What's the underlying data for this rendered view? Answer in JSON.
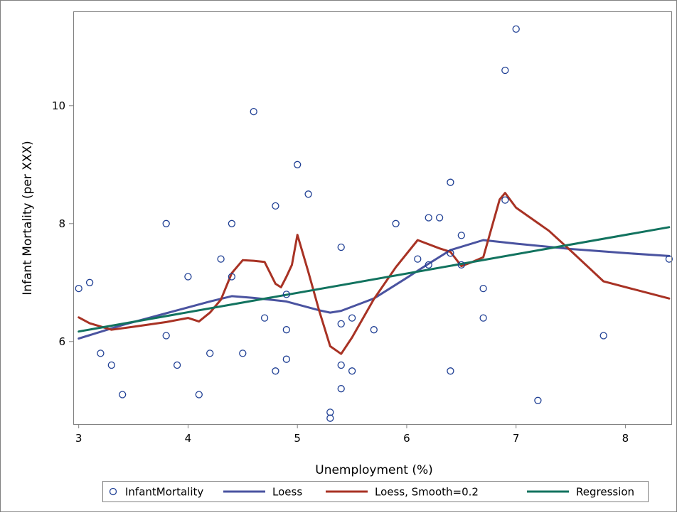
{
  "chart_data": {
    "type": "scatter",
    "title": "",
    "xlabel": "Unemployment (%)",
    "ylabel": "Infant Mortality (per XXX)",
    "xlim": [
      2.95,
      8.42
    ],
    "ylim": [
      4.6,
      11.6
    ],
    "x_ticks": [
      "3",
      "4",
      "5",
      "6",
      "7",
      "8"
    ],
    "y_ticks": [
      "6",
      "8",
      "10"
    ],
    "grid": false,
    "legend": {
      "position": "bottom",
      "entries": [
        "InfantMortality",
        "Loess",
        "Loess, Smooth=0.2",
        "Regression"
      ]
    },
    "colors": {
      "points": "#1f3f94",
      "loess": "#4a53a0",
      "loess_smooth": "#a83224",
      "regression": "#12735f",
      "frame": "#808080"
    },
    "series": [
      {
        "name": "InfantMortality",
        "type": "scatter",
        "points": [
          [
            3.0,
            6.9
          ],
          [
            3.1,
            7.0
          ],
          [
            3.2,
            5.8
          ],
          [
            3.3,
            5.6
          ],
          [
            3.4,
            5.1
          ],
          [
            3.8,
            8.0
          ],
          [
            3.8,
            6.1
          ],
          [
            3.9,
            5.6
          ],
          [
            4.0,
            7.1
          ],
          [
            4.1,
            5.1
          ],
          [
            4.2,
            5.8
          ],
          [
            4.3,
            7.4
          ],
          [
            4.4,
            8.0
          ],
          [
            4.4,
            7.1
          ],
          [
            4.5,
            5.8
          ],
          [
            4.6,
            9.9
          ],
          [
            4.7,
            6.4
          ],
          [
            4.8,
            8.3
          ],
          [
            4.8,
            5.5
          ],
          [
            4.9,
            6.8
          ],
          [
            4.9,
            6.2
          ],
          [
            4.9,
            5.7
          ],
          [
            5.0,
            9.0
          ],
          [
            5.1,
            8.5
          ],
          [
            5.3,
            4.8
          ],
          [
            5.3,
            4.7
          ],
          [
            5.4,
            7.6
          ],
          [
            5.4,
            6.3
          ],
          [
            5.4,
            5.6
          ],
          [
            5.4,
            5.2
          ],
          [
            5.5,
            6.4
          ],
          [
            5.5,
            5.5
          ],
          [
            5.7,
            6.2
          ],
          [
            5.9,
            8.0
          ],
          [
            6.1,
            7.4
          ],
          [
            6.2,
            8.1
          ],
          [
            6.2,
            7.3
          ],
          [
            6.3,
            8.1
          ],
          [
            6.4,
            8.7
          ],
          [
            6.4,
            7.5
          ],
          [
            6.4,
            5.5
          ],
          [
            6.5,
            7.8
          ],
          [
            6.5,
            7.3
          ],
          [
            6.7,
            6.9
          ],
          [
            6.7,
            6.4
          ],
          [
            6.9,
            10.6
          ],
          [
            6.9,
            8.4
          ],
          [
            7.0,
            11.3
          ],
          [
            7.2,
            5.0
          ],
          [
            7.8,
            6.1
          ],
          [
            8.4,
            7.4
          ]
        ]
      },
      {
        "name": "Loess",
        "type": "line",
        "points": [
          [
            3.0,
            6.05
          ],
          [
            3.4,
            6.28
          ],
          [
            3.8,
            6.48
          ],
          [
            4.2,
            6.68
          ],
          [
            4.4,
            6.77
          ],
          [
            4.6,
            6.74
          ],
          [
            4.9,
            6.68
          ],
          [
            5.2,
            6.53
          ],
          [
            5.3,
            6.49
          ],
          [
            5.4,
            6.52
          ],
          [
            5.7,
            6.73
          ],
          [
            6.0,
            7.08
          ],
          [
            6.2,
            7.32
          ],
          [
            6.4,
            7.55
          ],
          [
            6.7,
            7.72
          ],
          [
            7.0,
            7.66
          ],
          [
            7.5,
            7.57
          ],
          [
            8.0,
            7.5
          ],
          [
            8.4,
            7.45
          ]
        ]
      },
      {
        "name": "Loess, Smooth=0.2",
        "type": "line",
        "points": [
          [
            3.0,
            6.41
          ],
          [
            3.1,
            6.31
          ],
          [
            3.3,
            6.2
          ],
          [
            3.5,
            6.25
          ],
          [
            3.8,
            6.33
          ],
          [
            4.0,
            6.4
          ],
          [
            4.1,
            6.34
          ],
          [
            4.2,
            6.49
          ],
          [
            4.3,
            6.71
          ],
          [
            4.4,
            7.16
          ],
          [
            4.5,
            7.38
          ],
          [
            4.6,
            7.37
          ],
          [
            4.7,
            7.35
          ],
          [
            4.8,
            6.98
          ],
          [
            4.85,
            6.92
          ],
          [
            4.9,
            7.1
          ],
          [
            4.95,
            7.3
          ],
          [
            5.0,
            7.81
          ],
          [
            5.1,
            7.18
          ],
          [
            5.2,
            6.52
          ],
          [
            5.3,
            5.92
          ],
          [
            5.4,
            5.79
          ],
          [
            5.5,
            6.07
          ],
          [
            5.7,
            6.72
          ],
          [
            5.9,
            7.26
          ],
          [
            6.1,
            7.72
          ],
          [
            6.3,
            7.58
          ],
          [
            6.4,
            7.52
          ],
          [
            6.5,
            7.28
          ],
          [
            6.6,
            7.35
          ],
          [
            6.7,
            7.43
          ],
          [
            6.85,
            8.41
          ],
          [
            6.9,
            8.52
          ],
          [
            7.0,
            8.27
          ],
          [
            7.3,
            7.88
          ],
          [
            7.5,
            7.54
          ],
          [
            7.8,
            7.02
          ],
          [
            8.4,
            6.73
          ]
        ]
      },
      {
        "name": "Regression",
        "type": "line",
        "points": [
          [
            3.0,
            6.17
          ],
          [
            8.4,
            7.94
          ]
        ]
      }
    ]
  }
}
